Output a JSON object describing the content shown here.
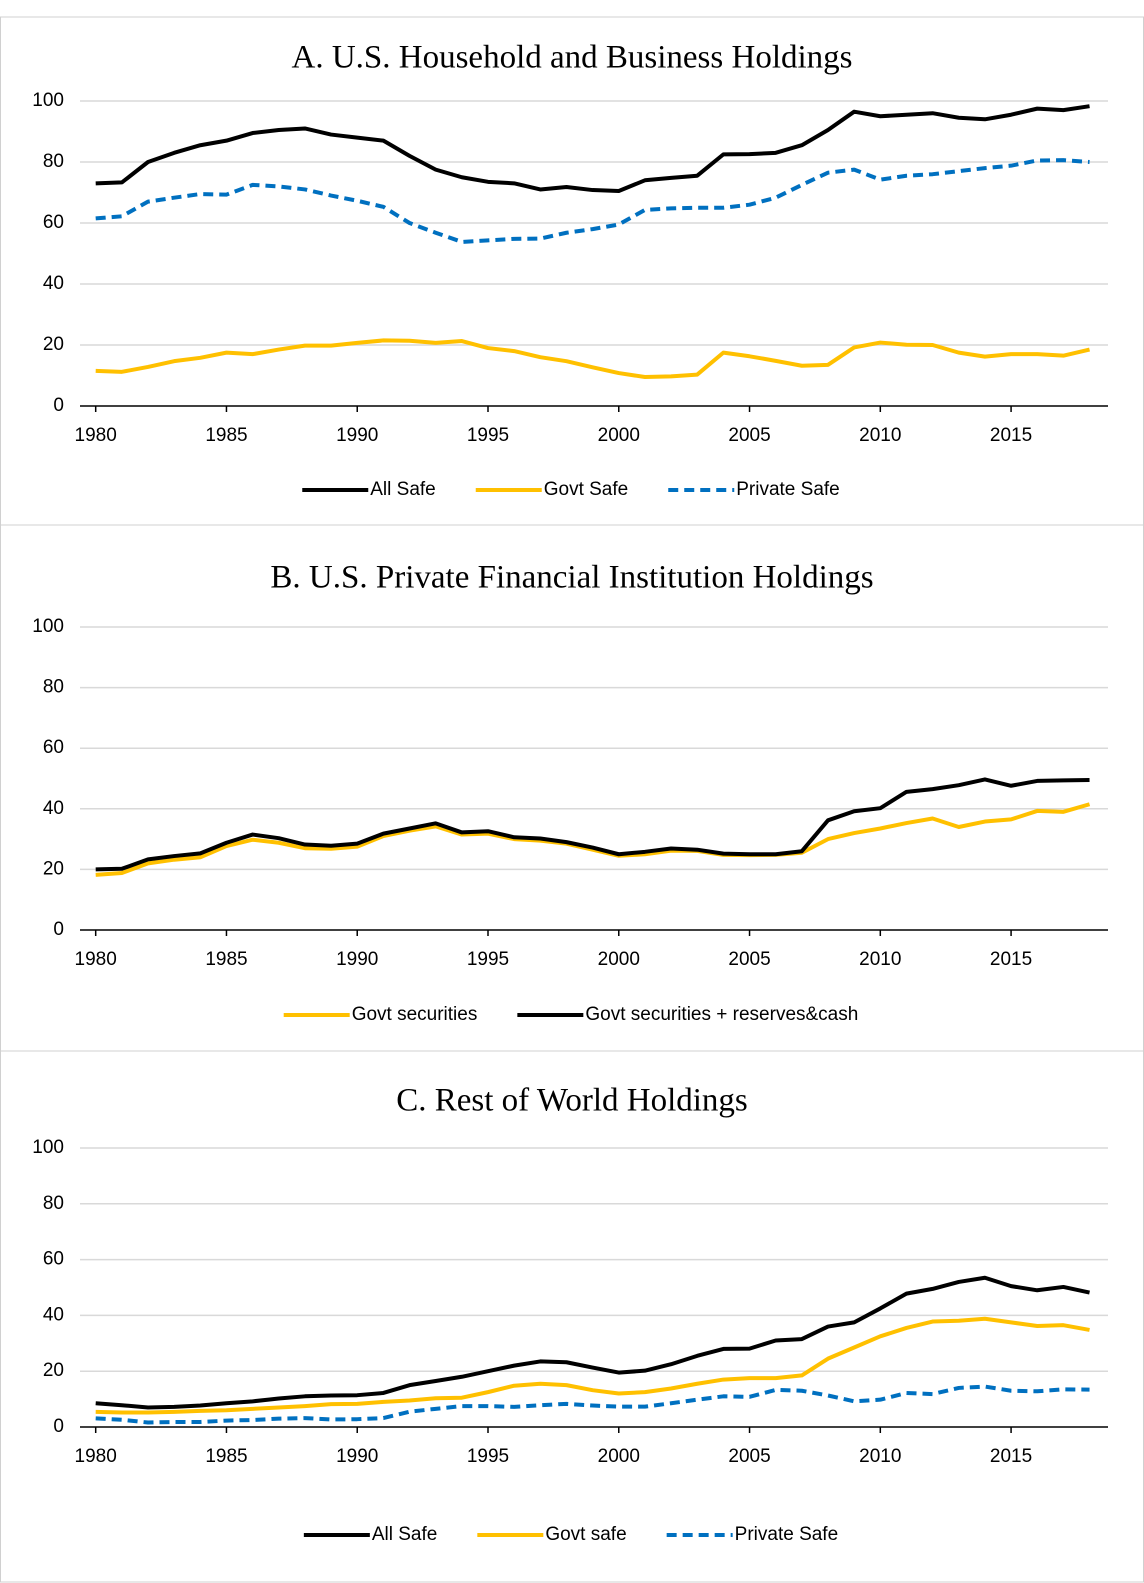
{
  "chart_data": [
    {
      "type": "line",
      "title": "A. U.S. Household and Business Holdings",
      "x": [
        1980,
        1981,
        1982,
        1983,
        1984,
        1985,
        1986,
        1987,
        1988,
        1989,
        1990,
        1991,
        1992,
        1993,
        1994,
        1995,
        1996,
        1997,
        1998,
        1999,
        2000,
        2001,
        2002,
        2003,
        2004,
        2005,
        2006,
        2007,
        2008,
        2009,
        2010,
        2011,
        2012,
        2013,
        2014,
        2015,
        2016,
        2017,
        2018
      ],
      "xlim": [
        1979.4,
        2018.4
      ],
      "xticks": [
        1980,
        1985,
        1990,
        1995,
        2000,
        2005,
        2010,
        2015
      ],
      "ylim": [
        0,
        100
      ],
      "yticks": [
        0,
        20,
        40,
        60,
        80,
        100
      ],
      "grid": true,
      "legend": "bottom",
      "series": [
        {
          "name": "All Safe",
          "color": "#000000",
          "dashed": false,
          "values": [
            73,
            73.3,
            80,
            83,
            85.5,
            87,
            89.5,
            90.5,
            91,
            89,
            88,
            87,
            82,
            77.5,
            75,
            73.5,
            73,
            71,
            71.8,
            70.8,
            70.5,
            74,
            74.8,
            75.5,
            82.5,
            82.6,
            83,
            85.5,
            90.5,
            96.5,
            95,
            95.5,
            96,
            94.5,
            94,
            95.5,
            97.5,
            97,
            98.3
          ]
        },
        {
          "name": "Govt Safe",
          "color": "#ffc000",
          "dashed": false,
          "values": [
            11.5,
            11.2,
            12.8,
            14.7,
            15.8,
            17.5,
            17,
            18.5,
            19.8,
            19.8,
            20.7,
            21.5,
            21.4,
            20.7,
            21.3,
            19,
            18,
            16,
            14.7,
            12.7,
            10.8,
            9.5,
            9.7,
            10.3,
            17.5,
            16.3,
            14.8,
            13.2,
            13.5,
            19.2,
            20.8,
            20.1,
            20,
            17.5,
            16.2,
            17,
            17,
            16.5,
            18.5
          ]
        },
        {
          "name": "Private Safe",
          "color": "#0070c0",
          "dashed": true,
          "values": [
            61.5,
            62.2,
            67,
            68.3,
            69.5,
            69.3,
            72.5,
            72,
            71,
            69,
            67.3,
            65.3,
            60,
            56.8,
            53.8,
            54.3,
            54.8,
            54.9,
            56.8,
            58,
            59.5,
            64.3,
            64.8,
            65,
            65,
            66,
            68.3,
            72.5,
            76.5,
            77.5,
            74.2,
            75.5,
            76,
            77,
            78,
            78.8,
            80.5,
            80.6,
            80
          ]
        }
      ]
    },
    {
      "type": "line",
      "title": "B. U.S. Private Financial Institution Holdings",
      "x": [
        1980,
        1981,
        1982,
        1983,
        1984,
        1985,
        1986,
        1987,
        1988,
        1989,
        1990,
        1991,
        1992,
        1993,
        1994,
        1995,
        1996,
        1997,
        1998,
        1999,
        2000,
        2001,
        2002,
        2003,
        2004,
        2005,
        2006,
        2007,
        2008,
        2009,
        2010,
        2011,
        2012,
        2013,
        2014,
        2015,
        2016,
        2017,
        2018
      ],
      "xlim": [
        1979.4,
        2018.4
      ],
      "xticks": [
        1980,
        1985,
        1990,
        1995,
        2000,
        2005,
        2010,
        2015
      ],
      "ylim": [
        0,
        100
      ],
      "yticks": [
        0,
        20,
        40,
        60,
        80,
        100
      ],
      "grid": true,
      "legend": "bottom",
      "series": [
        {
          "name": "Govt securities",
          "color": "#ffc000",
          "dashed": false,
          "values": [
            18.2,
            18.8,
            22,
            23.2,
            24,
            27.7,
            29.8,
            28.8,
            27,
            26.8,
            27.5,
            31,
            32.8,
            34.2,
            31.5,
            31.8,
            30,
            29.5,
            28.5,
            26.5,
            24.5,
            25,
            26.2,
            26.1,
            24.8,
            24.7,
            24.8,
            25.5,
            30,
            32,
            33.5,
            35.3,
            36.8,
            34,
            35.8,
            36.5,
            39.3,
            39,
            41.5
          ]
        },
        {
          "name": "Govt securities + reserves&cash",
          "color": "#000000",
          "dashed": false,
          "values": [
            20,
            20.2,
            23.3,
            24.4,
            25.3,
            28.8,
            31.5,
            30.3,
            28.2,
            27.8,
            28.5,
            31.8,
            33.5,
            35.2,
            32.2,
            32.6,
            30.6,
            30.2,
            29,
            27.2,
            25,
            25.8,
            26.9,
            26.5,
            25.2,
            25,
            25,
            26,
            36.2,
            39.2,
            40.2,
            45.6,
            46.5,
            47.8,
            49.7,
            47.6,
            49.2,
            49.4,
            49.5
          ]
        }
      ]
    },
    {
      "type": "line",
      "title": "C. Rest of World Holdings",
      "x": [
        1980,
        1981,
        1982,
        1983,
        1984,
        1985,
        1986,
        1987,
        1988,
        1989,
        1990,
        1991,
        1992,
        1993,
        1994,
        1995,
        1996,
        1997,
        1998,
        1999,
        2000,
        2001,
        2002,
        2003,
        2004,
        2005,
        2006,
        2007,
        2008,
        2009,
        2010,
        2011,
        2012,
        2013,
        2014,
        2015,
        2016,
        2017,
        2018
      ],
      "xlim": [
        1979.4,
        2018.4
      ],
      "xticks": [
        1980,
        1985,
        1990,
        1995,
        2000,
        2005,
        2010,
        2015
      ],
      "ylim": [
        0,
        100
      ],
      "yticks": [
        0,
        20,
        40,
        60,
        80,
        100
      ],
      "grid": true,
      "legend": "bottom",
      "series": [
        {
          "name": "All Safe",
          "color": "#000000",
          "dashed": false,
          "values": [
            8.5,
            7.8,
            7,
            7.2,
            7.7,
            8.5,
            9.2,
            10.2,
            11,
            11.3,
            11.4,
            12.2,
            15,
            16.5,
            18,
            20,
            22,
            23.5,
            23.2,
            21.3,
            19.5,
            20.2,
            22.5,
            25.5,
            28,
            28.1,
            31,
            31.5,
            36,
            37.5,
            42.5,
            47.8,
            49.5,
            52,
            53.5,
            50.5,
            49,
            50.2,
            48.2
          ]
        },
        {
          "name": "Govt safe",
          "color": "#ffc000",
          "dashed": false,
          "values": [
            5.4,
            5.2,
            5.2,
            5.4,
            5.8,
            6,
            6.5,
            7,
            7.5,
            8.2,
            8.3,
            9,
            9.5,
            10.3,
            10.5,
            12.5,
            14.8,
            15.5,
            15,
            13.2,
            12,
            12.5,
            13.8,
            15.5,
            17,
            17.5,
            17.5,
            18.5,
            24.5,
            28.5,
            32.5,
            35.5,
            37.8,
            38.1,
            38.8,
            37.5,
            36.2,
            36.5,
            34.8
          ]
        },
        {
          "name": "Private Safe",
          "color": "#0070c0",
          "dashed": true,
          "values": [
            3.1,
            2.6,
            1.6,
            1.8,
            1.8,
            2.3,
            2.5,
            3,
            3.2,
            2.7,
            2.8,
            3.2,
            5.5,
            6.5,
            7.5,
            7.5,
            7.2,
            7.8,
            8.3,
            7.7,
            7.3,
            7.3,
            8.5,
            9.8,
            11,
            10.8,
            13.3,
            13,
            11.3,
            9.2,
            9.8,
            12.2,
            11.8,
            14,
            14.5,
            13,
            12.8,
            13.5,
            13.4
          ]
        }
      ]
    }
  ]
}
